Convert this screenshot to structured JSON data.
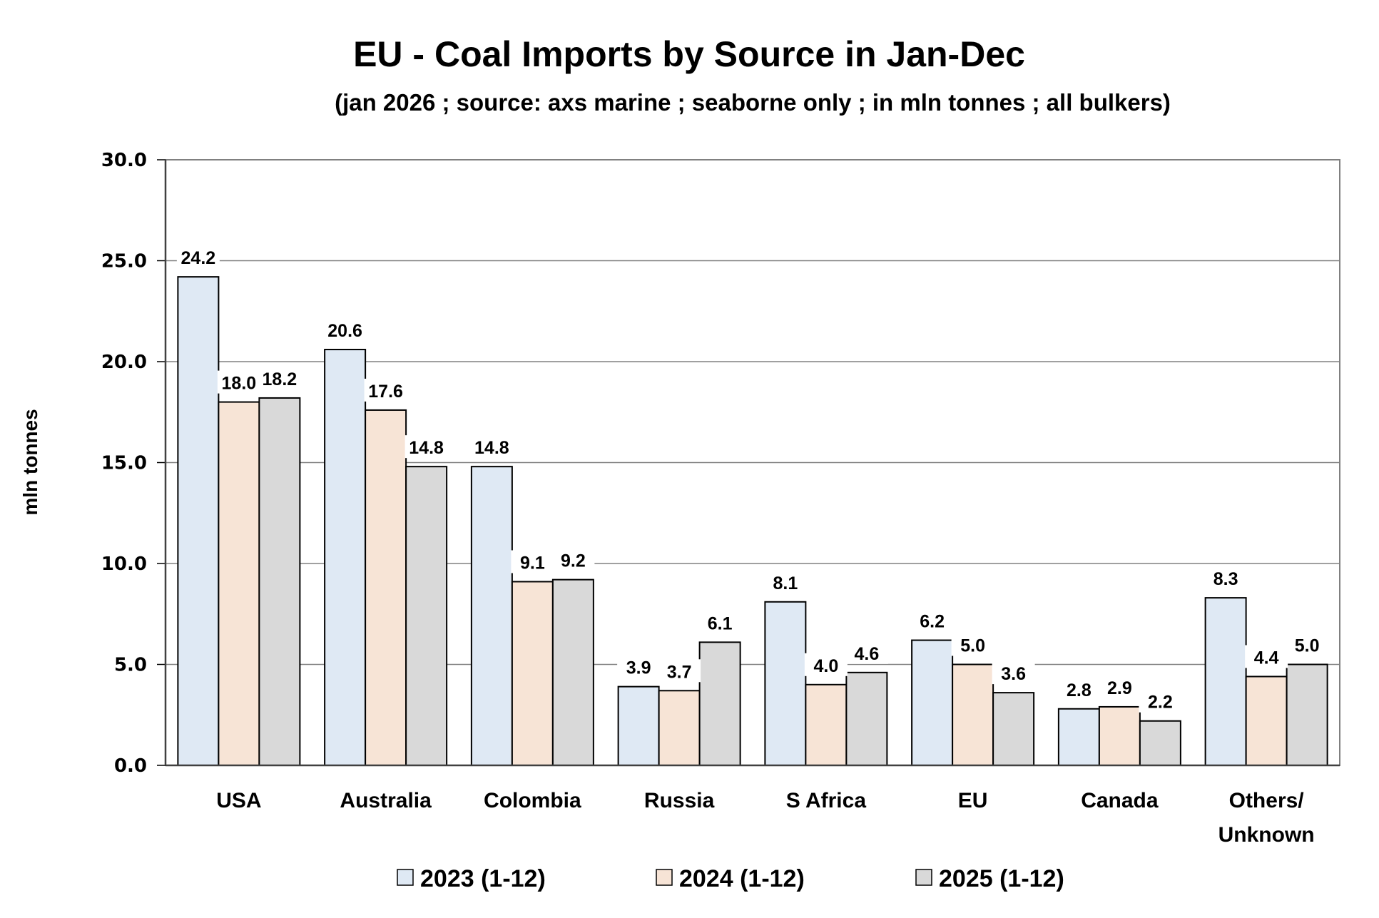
{
  "chart_data": {
    "type": "bar",
    "title": "EU - Coal Imports by Source in Jan-Dec",
    "subtitle": "(jan 2026 ; source: axs marine ; seaborne only ; in mln tonnes ; all bulkers)",
    "xlabel": "",
    "ylabel": "mln tonnes",
    "ylim": [
      0,
      30
    ],
    "yticks": [
      "0.0",
      "5.0",
      "10.0",
      "15.0",
      "20.0",
      "25.0",
      "30.0"
    ],
    "grid": true,
    "legend_placement": "bottom",
    "categories": [
      "USA",
      "Australia",
      "Colombia",
      "Russia",
      "S Africa",
      "EU",
      "Canada",
      "Others/\nUnknown"
    ],
    "series": [
      {
        "name": "2023 (1-12)",
        "color": "#dfe9f4",
        "values": [
          24.2,
          20.6,
          14.8,
          3.9,
          8.1,
          6.2,
          2.8,
          8.3
        ]
      },
      {
        "name": "2024 (1-12)",
        "color": "#f7e4d6",
        "values": [
          18.0,
          17.6,
          9.1,
          3.7,
          4.0,
          5.0,
          2.9,
          4.4
        ]
      },
      {
        "name": "2025 (1-12)",
        "color": "#d9d9d9",
        "values": [
          18.2,
          14.8,
          9.2,
          6.1,
          4.6,
          3.6,
          2.2,
          5.0
        ]
      }
    ]
  }
}
